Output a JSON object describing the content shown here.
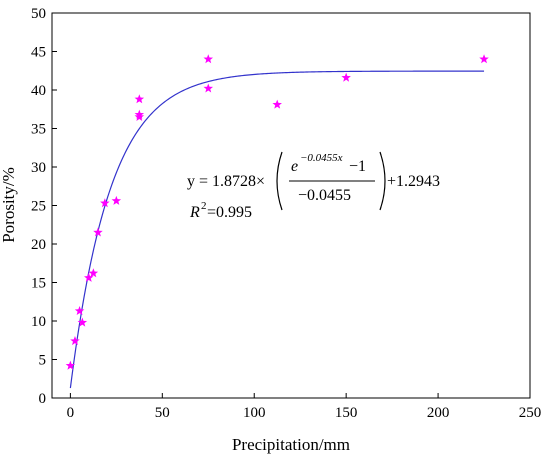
{
  "chart_data": {
    "type": "scatter",
    "xlabel": "Precipitation/mm",
    "ylabel": "Porosity/%",
    "xlim": [
      -10,
      250
    ],
    "ylim": [
      0,
      50
    ],
    "x_ticks": [
      0,
      50,
      100,
      150,
      200,
      250
    ],
    "y_ticks": [
      0,
      5,
      10,
      15,
      20,
      25,
      30,
      35,
      40,
      45,
      50
    ],
    "grid": false,
    "colors": {
      "points": "#ff00ff",
      "fit": "#3333cc",
      "axes": "#000000"
    },
    "points": [
      {
        "x": 0,
        "y": 4.2
      },
      {
        "x": 2.5,
        "y": 7.4
      },
      {
        "x": 5,
        "y": 11.3
      },
      {
        "x": 6.5,
        "y": 9.8
      },
      {
        "x": 10,
        "y": 15.6
      },
      {
        "x": 12.5,
        "y": 16.2
      },
      {
        "x": 15,
        "y": 21.5
      },
      {
        "x": 18.75,
        "y": 25.3
      },
      {
        "x": 25,
        "y": 25.6
      },
      {
        "x": 37.5,
        "y": 36.5
      },
      {
        "x": 37.5,
        "y": 36.8
      },
      {
        "x": 37.5,
        "y": 38.8
      },
      {
        "x": 75,
        "y": 40.2
      },
      {
        "x": 75,
        "y": 44.0
      },
      {
        "x": 112.5,
        "y": 38.1
      },
      {
        "x": 150,
        "y": 41.6
      },
      {
        "x": 225,
        "y": 44.0
      }
    ],
    "fit": {
      "a": 1.8728,
      "k": -0.0455,
      "b": 1.2943,
      "x_range": [
        0,
        225
      ]
    },
    "equation": {
      "lhs": "y = 1.8728×",
      "numerator_base": "e",
      "numerator_exp": "−0.0455x",
      "numerator_tail": " −1",
      "denominator": "−0.0455",
      "rhs": "+1.2943",
      "r2_label": "R",
      "r2_sup": "2",
      "r2_value": "=0.995"
    }
  }
}
